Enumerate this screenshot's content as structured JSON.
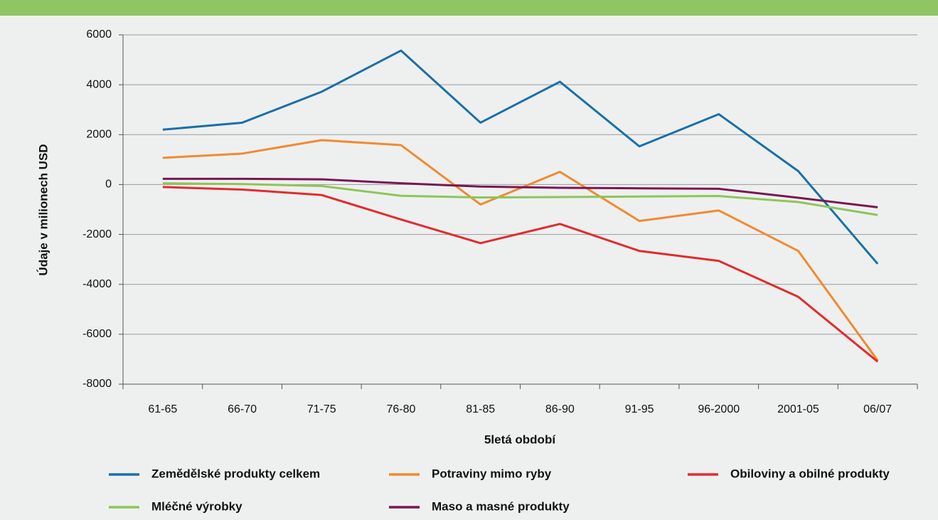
{
  "chart_data": {
    "type": "line",
    "y_label": "Údaje v milionech USD",
    "x_label": "5letá období",
    "categories": [
      "61-65",
      "66-70",
      "71-75",
      "76-80",
      "81-85",
      "86-90",
      "91-95",
      "96-2000",
      "2001-05",
      "06/07"
    ],
    "series": [
      {
        "name": "Zemědělské produkty celkem",
        "color": "#1b6fa8",
        "values": [
          2200,
          2480,
          3720,
          5370,
          2480,
          4120,
          1530,
          2820,
          540,
          -3180
        ]
      },
      {
        "name": "Potraviny mimo ryby",
        "color": "#f28a2e",
        "values": [
          1070,
          1240,
          1780,
          1580,
          -800,
          510,
          -1460,
          -1040,
          -2660,
          -7050
        ]
      },
      {
        "name": "Obiloviny a obilné produkty",
        "color": "#e32b2b",
        "values": [
          -100,
          -200,
          -420,
          -1400,
          -2350,
          -1580,
          -2660,
          -3060,
          -4500,
          -7100
        ]
      },
      {
        "name": "Mléčné výrobky",
        "color": "#8dc657",
        "values": [
          50,
          20,
          -60,
          -450,
          -520,
          -500,
          -480,
          -460,
          -700,
          -1220
        ]
      },
      {
        "name": "Maso a masné produkty",
        "color": "#7a1652",
        "values": [
          230,
          230,
          210,
          50,
          -80,
          -130,
          -150,
          -170,
          -530,
          -910
        ]
      }
    ],
    "ylim": [
      -8000,
      6000
    ],
    "yticks": [
      -8000,
      -6000,
      -4000,
      -2000,
      0,
      2000,
      4000,
      6000
    ],
    "grid": true,
    "legend": "bottom"
  }
}
